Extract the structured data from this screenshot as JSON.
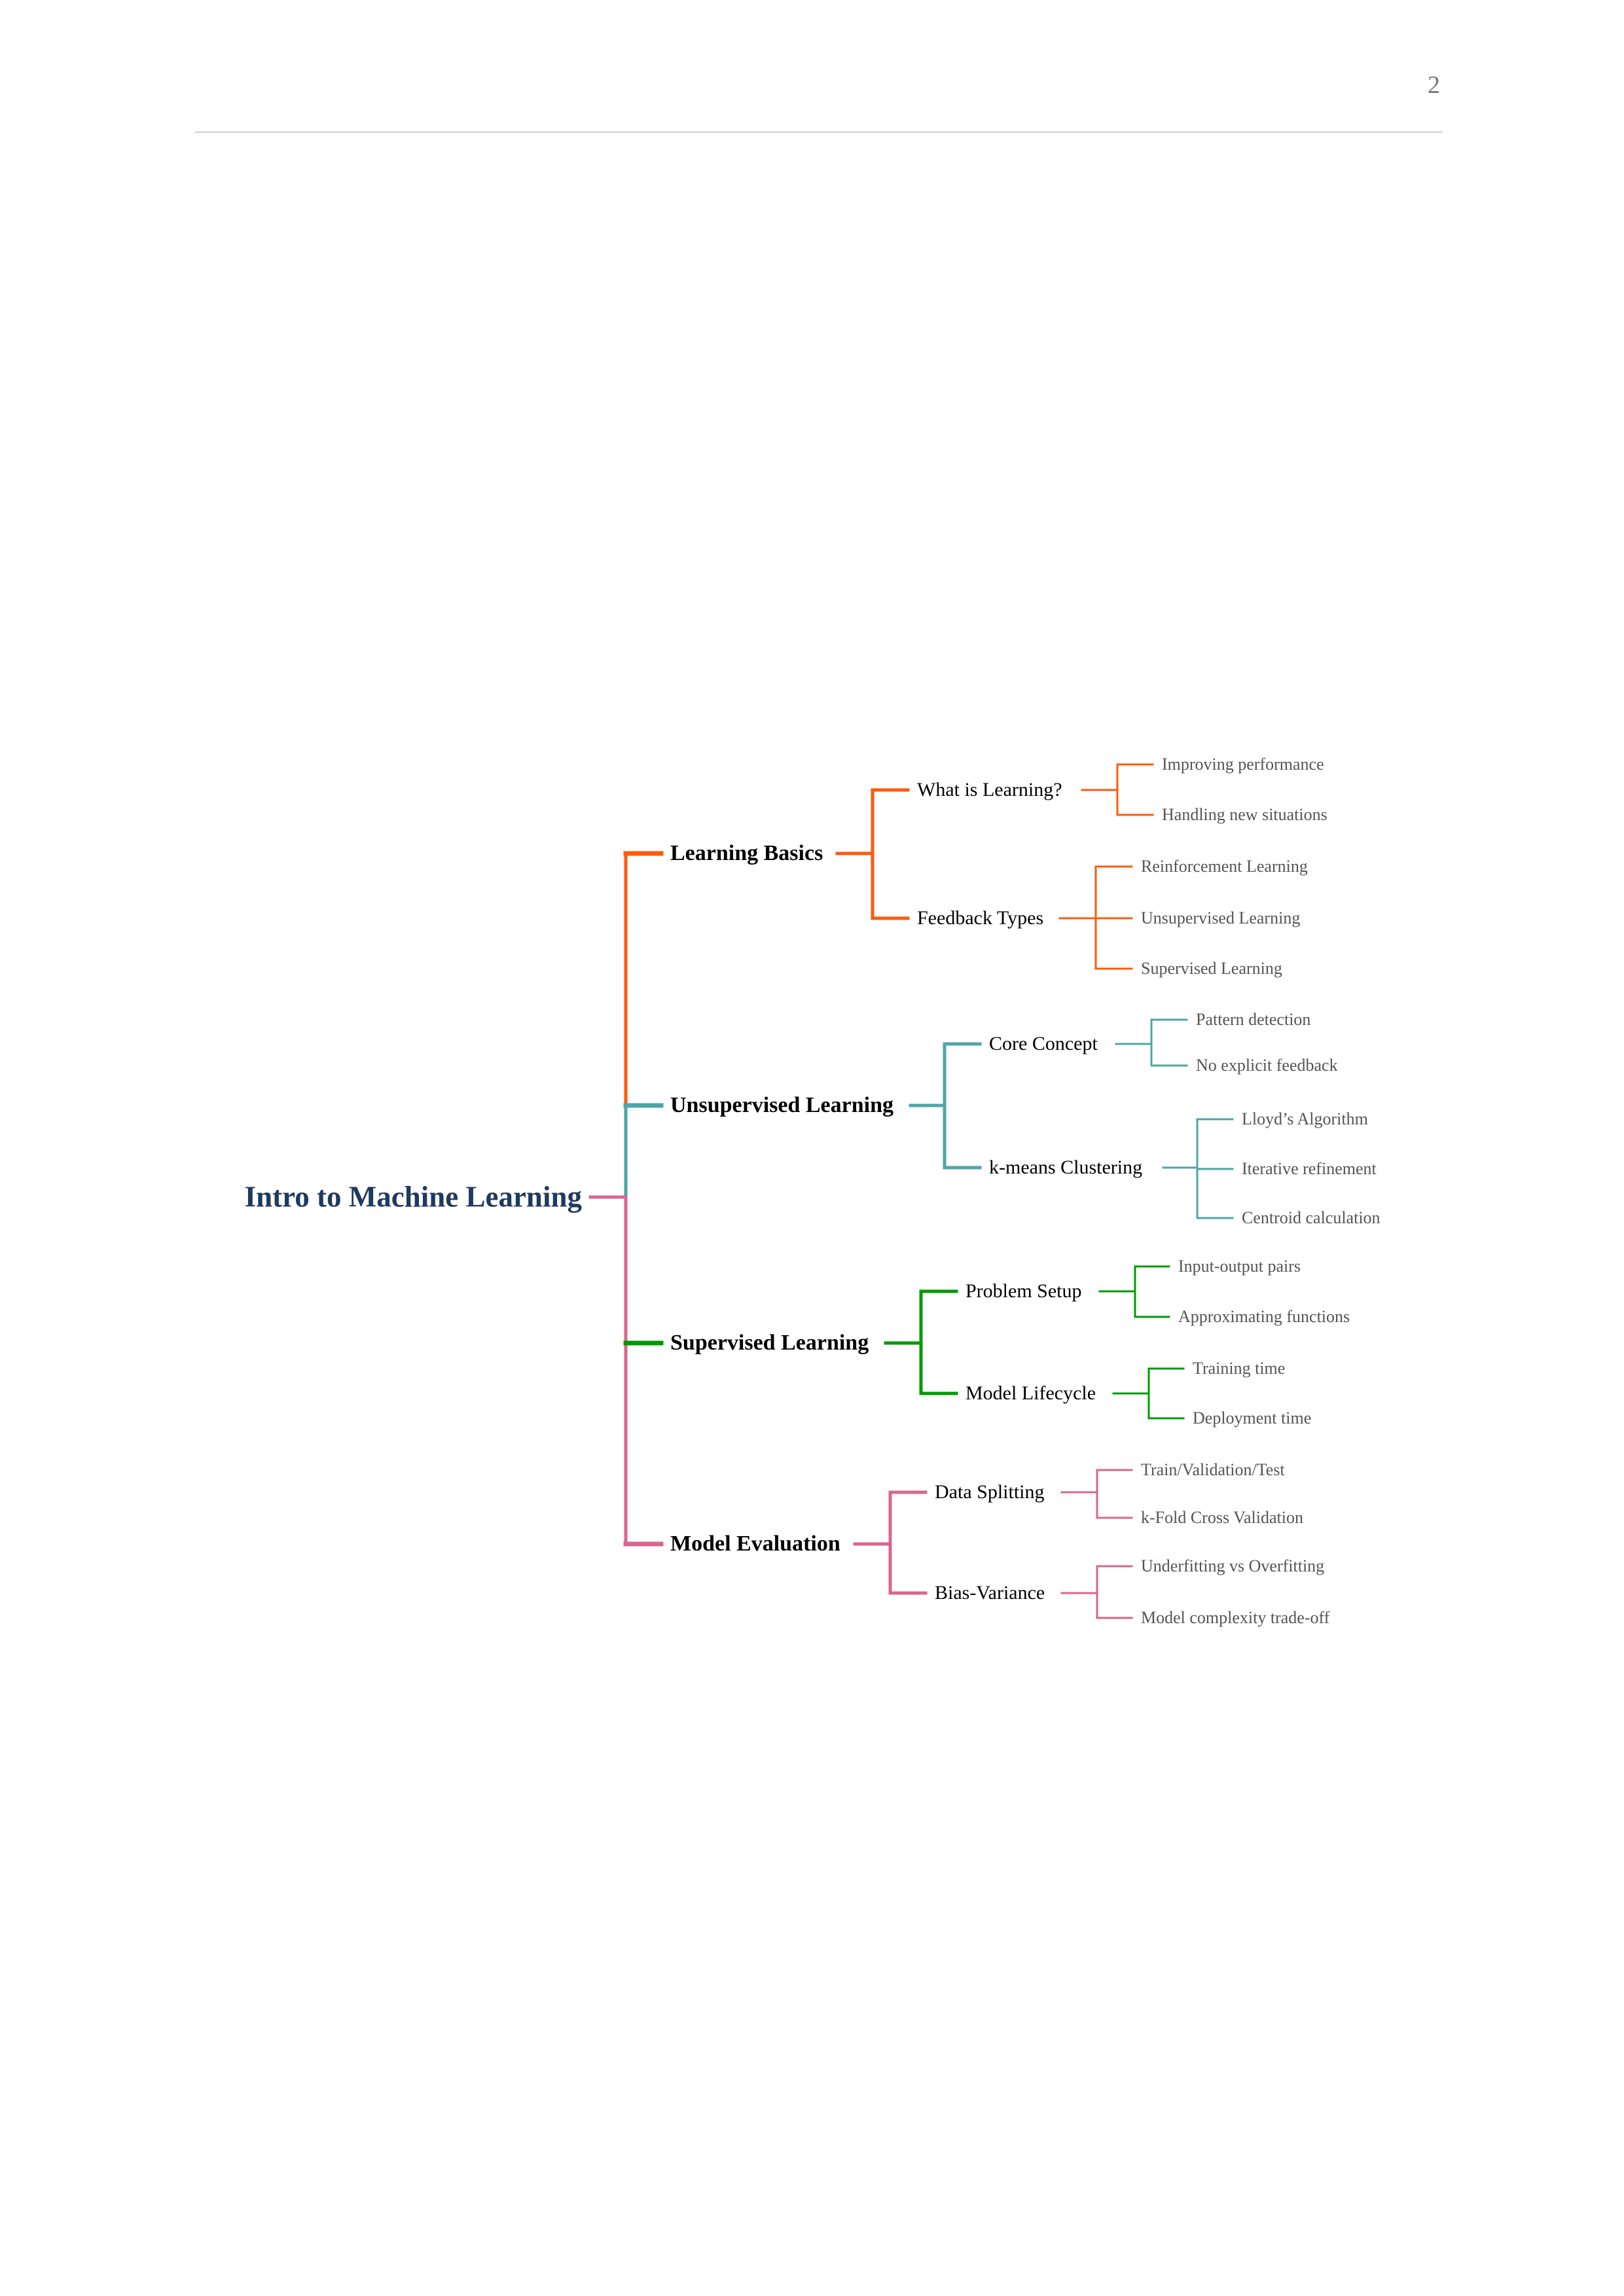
{
  "page_number": "2",
  "mindmap": {
    "root": "Intro to Machine Learning",
    "root_color": "#1f3a5f",
    "branches": [
      {
        "label": "Learning Basics",
        "color": "#ff5a0a",
        "children": [
          {
            "label": "What is Learning?",
            "leaves": [
              "Improving performance",
              "Handling new situations"
            ]
          },
          {
            "label": "Feedback Types",
            "leaves": [
              "Reinforcement Learning",
              "Unsupervised Learning",
              "Supervised Learning"
            ]
          }
        ]
      },
      {
        "label": "Unsupervised Learning",
        "color": "#4ca6a6",
        "children": [
          {
            "label": "Core Concept",
            "leaves": [
              "Pattern detection",
              "No explicit feedback"
            ]
          },
          {
            "label": "k-means Clustering",
            "leaves": [
              "Lloyd’s Algorithm",
              "Iterative refinement",
              "Centroid calculation"
            ]
          }
        ]
      },
      {
        "label": "Supervised Learning",
        "color": "#009a00",
        "children": [
          {
            "label": "Problem Setup",
            "leaves": [
              "Input-output pairs",
              "Approximating functions"
            ]
          },
          {
            "label": "Model Lifecycle",
            "leaves": [
              "Training time",
              "Deployment time"
            ]
          }
        ]
      },
      {
        "label": "Model Evaluation",
        "color": "#d9668f",
        "children": [
          {
            "label": "Data Splitting",
            "leaves": [
              "Train/Validation/Test",
              "k-Fold Cross Validation"
            ]
          },
          {
            "label": "Bias-Variance",
            "leaves": [
              "Underfitting vs Overfitting",
              "Model complexity trade-off"
            ]
          }
        ]
      }
    ]
  }
}
